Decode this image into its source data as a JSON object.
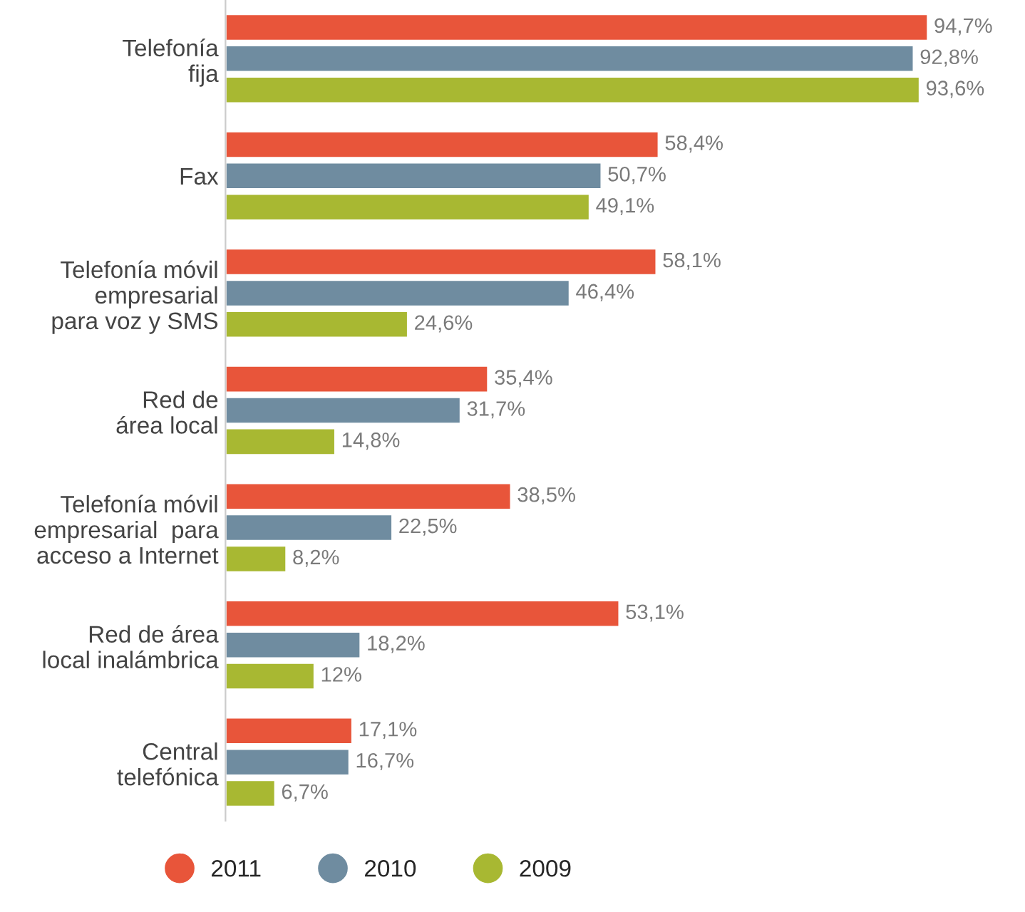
{
  "chart_data": {
    "type": "bar",
    "orientation": "horizontal",
    "legend": "bottom",
    "grid": false,
    "categories": [
      "Telefonía\nfija",
      "Fax",
      "Telefonía móvil\nempresarial\npara voz y SMS",
      "Red de\nárea local",
      "Telefonía móvil\nempresarial  para\nacceso a Internet",
      "Red de área\nlocal inalámbrica",
      "Central\ntelefónica"
    ],
    "series": [
      {
        "name": "2011",
        "color": "#e8553a",
        "values": [
          94.7,
          58.4,
          58.1,
          35.4,
          38.5,
          53.1,
          17.1
        ],
        "value_labels": [
          "94,7%",
          "58,4%",
          "58,1%",
          "35,4%",
          "38,5%",
          "53,1%",
          "17,1%"
        ]
      },
      {
        "name": "2010",
        "color": "#6f8ca0",
        "values": [
          92.8,
          50.7,
          46.4,
          31.7,
          22.5,
          18.2,
          16.7
        ],
        "value_labels": [
          "92,8%",
          "50,7%",
          "46,4%",
          "31,7%",
          "22,5%",
          "18,2%",
          "16,7%"
        ]
      },
      {
        "name": "2009",
        "color": "#a8b832",
        "values": [
          93.6,
          49.1,
          24.6,
          14.8,
          8.2,
          12,
          6.7
        ],
        "value_labels": [
          "93,6%",
          "49,1%",
          "24,6%",
          "14,8%",
          "8,2%",
          "12%",
          "6,7%"
        ]
      }
    ]
  }
}
